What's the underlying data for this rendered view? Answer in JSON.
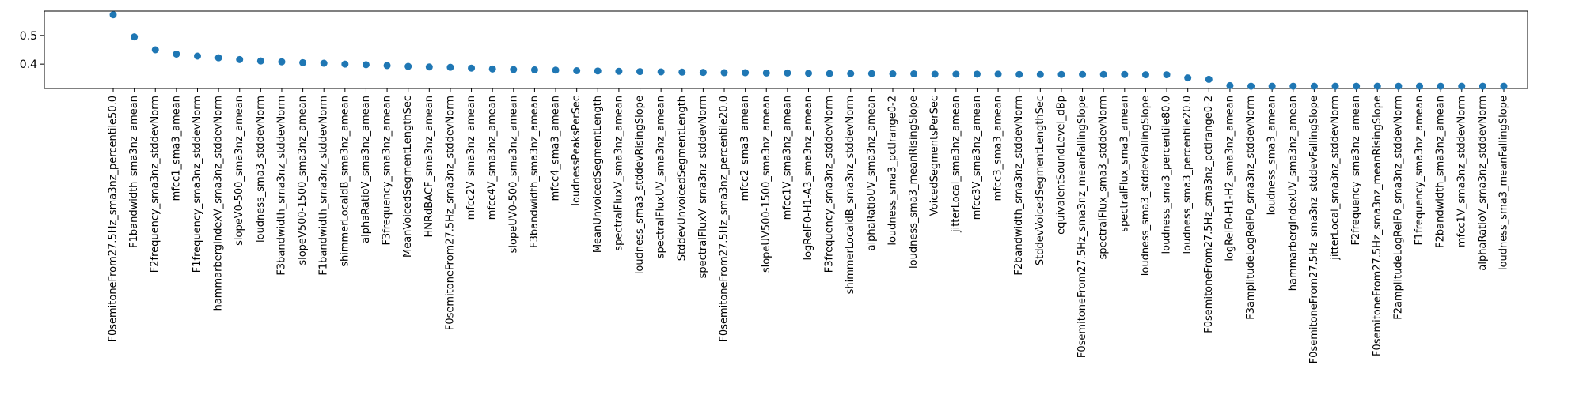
{
  "chart_data": {
    "type": "scatter",
    "title": "",
    "xlabel": "",
    "ylabel": "",
    "ylim": [
      0.315,
      0.585
    ],
    "yticks": [
      "0.4",
      "0.5"
    ],
    "ytick_values": [
      0.4,
      0.5
    ],
    "grid": false,
    "marker_color": "#1f77b4",
    "categories": [
      "F0semitoneFrom27.5Hz_sma3nz_percentile50.0",
      "F1bandwidth_sma3nz_amean",
      "F2frequency_sma3nz_stddevNorm",
      "mfcc1_sma3_amean",
      "F1frequency_sma3nz_stddevNorm",
      "hammarbergIndexV_sma3nz_stddevNorm",
      "slopeV0-500_sma3nz_amean",
      "loudness_sma3_stddevNorm",
      "F3bandwidth_sma3nz_stddevNorm",
      "slopeV500-1500_sma3nz_amean",
      "F1bandwidth_sma3nz_stddevNorm",
      "shimmerLocaldB_sma3nz_amean",
      "alphaRatioV_sma3nz_amean",
      "F3frequency_sma3nz_amean",
      "MeanVoicedSegmentLengthSec",
      "HNRdBACF_sma3nz_amean",
      "F0semitoneFrom27.5Hz_sma3nz_stddevNorm",
      "mfcc2V_sma3nz_amean",
      "mfcc4V_sma3nz_amean",
      "slopeUV0-500_sma3nz_amean",
      "F3bandwidth_sma3nz_amean",
      "mfcc4_sma3_amean",
      "loudnessPeaksPerSec",
      "MeanUnvoicedSegmentLength",
      "spectralFluxV_sma3nz_amean",
      "loudness_sma3_stddevRisingSlope",
      "spectralFluxUV_sma3nz_amean",
      "StddevUnvoicedSegmentLength",
      "spectralFluxV_sma3nz_stddevNorm",
      "F0semitoneFrom27.5Hz_sma3nz_percentile20.0",
      "mfcc2_sma3_amean",
      "slopeUV500-1500_sma3nz_amean",
      "mfcc1V_sma3nz_amean",
      "logRelF0-H1-A3_sma3nz_amean",
      "F3frequency_sma3nz_stddevNorm",
      "shimmerLocaldB_sma3nz_stddevNorm",
      "alphaRatioUV_sma3nz_amean",
      "loudness_sma3_pctlrange0-2",
      "loudness_sma3_meanRisingSlope",
      "VoicedSegmentsPerSec",
      "jitterLocal_sma3nz_amean",
      "mfcc3V_sma3nz_amean",
      "mfcc3_sma3_amean",
      "F2bandwidth_sma3nz_stddevNorm",
      "StddevVoicedSegmentLengthSec",
      "equivalentSoundLevel_dBp",
      "F0semitoneFrom27.5Hz_sma3nz_meanFallingSlope",
      "spectralFlux_sma3_stddevNorm",
      "spectralFlux_sma3_amean",
      "loudness_sma3_stddevFallingSlope",
      "loudness_sma3_percentile80.0",
      "loudness_sma3_percentile20.0",
      "F0semitoneFrom27.5Hz_sma3nz_pctlrange0-2",
      "logRelF0-H1-H2_sma3nz_amean",
      "F3amplitudeLogRelF0_sma3nz_stddevNorm",
      "loudness_sma3_amean",
      "hammarbergIndexUV_sma3nz_amean",
      "F0semitoneFrom27.5Hz_sma3nz_stddevFallingSlope",
      "jitterLocal_sma3nz_stddevNorm",
      "F2frequency_sma3nz_amean",
      "F0semitoneFrom27.5Hz_sma3nz_meanRisingSlope",
      "F2amplitudeLogRelF0_sma3nz_stddevNorm",
      "F1frequency_sma3nz_amean",
      "F2bandwidth_sma3nz_amean",
      "mfcc1V_sma3nz_stddevNorm",
      "alphaRatioV_sma3nz_stddevNorm",
      "loudness_sma3_meanFallingSlope"
    ],
    "values": [
      0.572,
      0.495,
      0.45,
      0.435,
      0.428,
      0.422,
      0.416,
      0.411,
      0.408,
      0.405,
      0.403,
      0.4,
      0.398,
      0.395,
      0.392,
      0.39,
      0.389,
      0.386,
      0.383,
      0.381,
      0.38,
      0.379,
      0.377,
      0.376,
      0.375,
      0.374,
      0.373,
      0.372,
      0.371,
      0.37,
      0.37,
      0.369,
      0.369,
      0.368,
      0.367,
      0.367,
      0.367,
      0.366,
      0.366,
      0.365,
      0.365,
      0.365,
      0.365,
      0.364,
      0.364,
      0.364,
      0.364,
      0.364,
      0.364,
      0.363,
      0.363,
      0.352,
      0.347,
      0.325,
      0.323,
      0.323,
      0.323,
      0.323,
      0.323,
      0.323,
      0.323,
      0.323,
      0.323,
      0.323,
      0.323,
      0.323,
      0.323
    ]
  }
}
